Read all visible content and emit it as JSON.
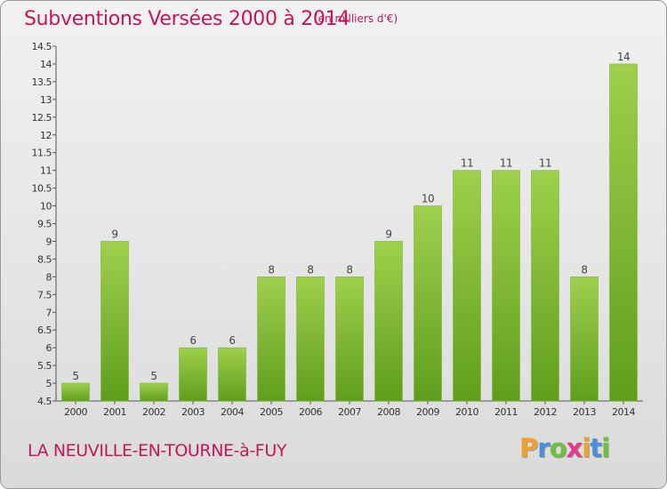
{
  "header": {
    "title": "Subventions Versées 2000 à 2014",
    "unit": "(en milliers d'€)"
  },
  "footer": {
    "commune": "LA NEUVILLE-EN-TOURNE-à-FUY",
    "logo_letters": [
      "P",
      "r",
      "o",
      "x",
      "i",
      "t",
      "i"
    ],
    "logo_colors": [
      "#f0a12a",
      "#4a90d9",
      "#6cbf3f",
      "#e23a8f",
      "#f0a12a",
      "#4a90d9",
      "#6cbf3f"
    ]
  },
  "colors": {
    "bar_top": "#9ed04c",
    "bar_bottom": "#5f9e1c",
    "accent": "#c2185b"
  },
  "chart_data": {
    "type": "bar",
    "title": "Subventions Versées 2000 à 2014",
    "xlabel": "",
    "ylabel": "",
    "categories": [
      "2000",
      "2001",
      "2002",
      "2003",
      "2004",
      "2005",
      "2006",
      "2007",
      "2008",
      "2009",
      "2010",
      "2011",
      "2012",
      "2013",
      "2014"
    ],
    "values": [
      5,
      9,
      5,
      6,
      6,
      8,
      8,
      8,
      9,
      10,
      11,
      11,
      11,
      8,
      14
    ],
    "data_labels": [
      "5",
      "9",
      "5",
      "6",
      "6",
      "8",
      "8",
      "8",
      "9",
      "10",
      "11",
      "11",
      "11",
      "8",
      "14"
    ],
    "ylim": [
      4.5,
      14.5
    ],
    "yticks": [
      4.5,
      5,
      5.5,
      6,
      6.5,
      7,
      7.5,
      8,
      8.5,
      9,
      9.5,
      10,
      10.5,
      11,
      11.5,
      12,
      12.5,
      13,
      13.5,
      14,
      14.5
    ],
    "ytick_labels": [
      "4.5",
      "5",
      "5.5",
      "6",
      "6.5",
      "7",
      "7.5",
      "8",
      "8.5",
      "9",
      "9.5",
      "10",
      "10.5",
      "11",
      "11.5",
      "12",
      "12.5",
      "13",
      "13.5",
      "14",
      "14.5"
    ],
    "grid": false,
    "legend": "none"
  }
}
